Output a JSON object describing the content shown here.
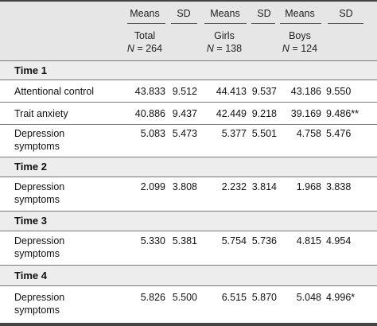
{
  "header": {
    "col_means_1": "Means",
    "col_sd_1": "SD",
    "col_means_2": "Means",
    "col_sd_2": "SD",
    "col_means_3": "Means",
    "col_sd_3": "SD",
    "group_total": "Total",
    "n_total_var": "N",
    "n_total_val": " = 264",
    "group_girls": "Girls",
    "n_girls_var": "N",
    "n_girls_val": " = 138",
    "group_boys": "Boys",
    "n_boys_var": "N",
    "n_boys_val": " = 124"
  },
  "sections": [
    {
      "title": "Time 1",
      "rows": [
        {
          "label": [
            "Attentional control"
          ],
          "values": [
            "43.833",
            "9.512",
            "44.413",
            "9.537",
            "43.186",
            "9.550"
          ]
        },
        {
          "label": [
            "Trait anxiety"
          ],
          "values": [
            "40.886",
            "9.437",
            "42.449",
            "9.218",
            "39.169",
            "9.486**"
          ]
        },
        {
          "label": [
            "Depression",
            "symptoms"
          ],
          "values": [
            "5.083",
            "5.473",
            "5.377",
            "5.501",
            "4.758",
            "5.476"
          ]
        }
      ]
    },
    {
      "title": "Time 2",
      "rows": [
        {
          "label": [
            "Depression",
            "symptoms"
          ],
          "values": [
            "2.099",
            "3.808",
            "2.232",
            "3.814",
            "1.968",
            "3.838"
          ]
        }
      ]
    },
    {
      "title": "Time 3",
      "rows": [
        {
          "label": [
            "Depression",
            "symptoms"
          ],
          "values": [
            "5.330",
            "5.381",
            "5.754",
            "5.736",
            "4.815",
            "4.954"
          ]
        }
      ]
    },
    {
      "title": "Time 4",
      "rows": [
        {
          "label": [
            "Depression",
            "symptoms"
          ],
          "values": [
            "5.826",
            "5.500",
            "6.515",
            "5.870",
            "5.048",
            "4.996*"
          ]
        }
      ]
    }
  ]
}
